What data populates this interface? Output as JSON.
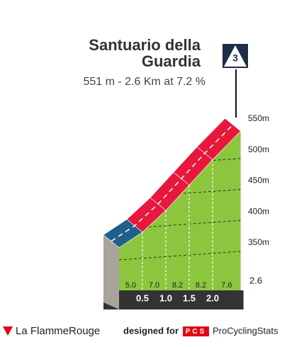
{
  "chart_data": {
    "type": "climb-profile",
    "title_lines": [
      "Santuario della",
      "Guardia"
    ],
    "subtitle": "551 m - 2.6 Km at 7.2 %",
    "category": "3",
    "x": [
      0,
      0.5,
      1,
      1.5,
      2,
      2.6
    ],
    "elevation": [
      363,
      388,
      423,
      464,
      505,
      551
    ],
    "gradients": [
      5,
      7,
      8.2,
      8.2,
      7.6
    ],
    "gradient_labels": [
      "5.0",
      "7.0",
      "8.2",
      "8.2",
      "7.6"
    ],
    "segment_colors": [
      "#1f5f8b",
      "#e8173c",
      "#e8173c",
      "#e8173c",
      "#e8173c"
    ],
    "face_color": "#8cc63e",
    "xticks": [
      0.5,
      {
        "value": 1,
        "label": "1.0"
      },
      1.5,
      {
        "value": 2,
        "label": "2.0"
      }
    ],
    "ylim": [
      330,
      560
    ],
    "yticks": [
      {
        "value": 350,
        "label": "350m"
      },
      {
        "value": 400,
        "label": "400m"
      },
      {
        "value": 450,
        "label": "450m"
      },
      {
        "value": 500,
        "label": "500m"
      },
      {
        "value": 550,
        "label": "550m"
      }
    ]
  },
  "footer": {
    "brand": "La FlammeRouge",
    "designed_for": "designed for",
    "logo": "PCS",
    "site": "ProCyclingStats"
  }
}
